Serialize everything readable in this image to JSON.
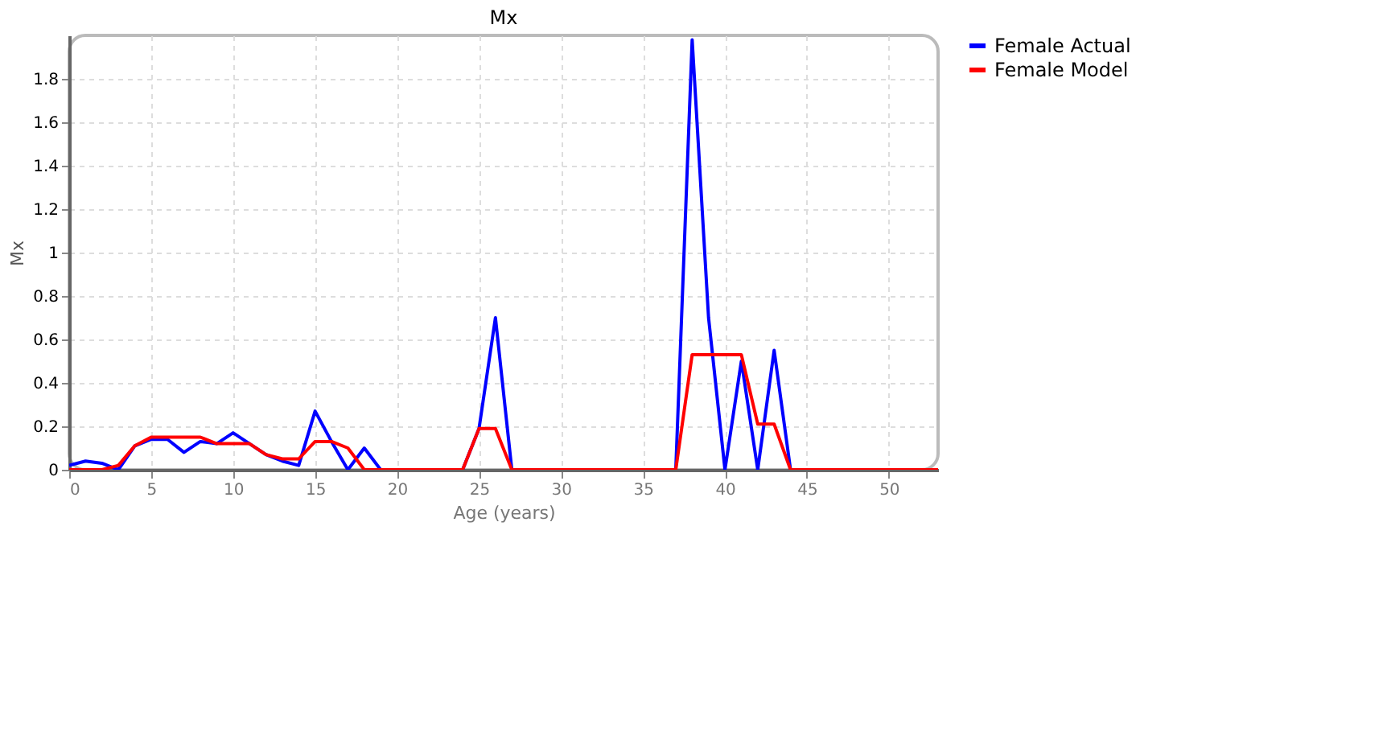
{
  "chart_data": {
    "type": "line",
    "title": "Mx",
    "xlabel": "Age (years)",
    "ylabel": "Mx",
    "x": [
      0,
      1,
      2,
      3,
      4,
      5,
      6,
      7,
      8,
      9,
      10,
      11,
      12,
      13,
      14,
      15,
      16,
      17,
      18,
      19,
      20,
      21,
      22,
      23,
      24,
      25,
      26,
      27,
      28,
      29,
      30,
      31,
      32,
      33,
      34,
      35,
      36,
      37,
      38,
      39,
      40,
      41,
      42,
      43,
      44,
      45,
      46,
      47,
      48,
      49,
      50,
      51,
      52,
      53
    ],
    "series": [
      {
        "name": "Female Actual",
        "color": "#0000ff",
        "values": [
          0.02,
          0.04,
          0.03,
          0,
          0.11,
          0.14,
          0.14,
          0.08,
          0.13,
          0.12,
          0.17,
          0.12,
          0.07,
          0.04,
          0.02,
          0.27,
          0.13,
          0,
          0.1,
          0,
          0,
          0,
          0,
          0,
          0,
          0.19,
          0.7,
          0,
          0,
          0,
          0,
          0,
          0,
          0,
          0,
          0,
          0,
          0,
          1.98,
          0.7,
          0,
          0.5,
          0,
          0.55,
          0,
          0,
          0,
          null,
          null,
          null,
          null,
          null,
          null,
          null
        ]
      },
      {
        "name": "Female Model",
        "color": "#ff0000",
        "values": [
          0,
          0,
          0,
          0.02,
          0.11,
          0.15,
          0.15,
          0.15,
          0.15,
          0.12,
          0.12,
          0.12,
          0.07,
          0.05,
          0.05,
          0.13,
          0.13,
          0.1,
          0,
          0,
          0,
          0,
          0,
          0,
          0,
          0.19,
          0.19,
          0,
          0,
          0,
          0,
          0,
          0,
          0,
          0,
          0,
          0,
          0,
          0.53,
          0.53,
          0.53,
          0.53,
          0.21,
          0.21,
          0,
          0,
          0,
          0,
          0,
          0,
          0,
          0,
          0,
          0
        ]
      }
    ],
    "xlim": [
      0,
      53
    ],
    "xticks": [
      0,
      5,
      10,
      15,
      20,
      25,
      30,
      35,
      40,
      45,
      50
    ],
    "ylim": [
      0,
      2
    ],
    "yticks": [
      0,
      0.2,
      0.4,
      0.6,
      0.8,
      1,
      1.2,
      1.4,
      1.6,
      1.8
    ],
    "grid": true,
    "legend": "right",
    "marker": "none",
    "line_style": "solid"
  }
}
